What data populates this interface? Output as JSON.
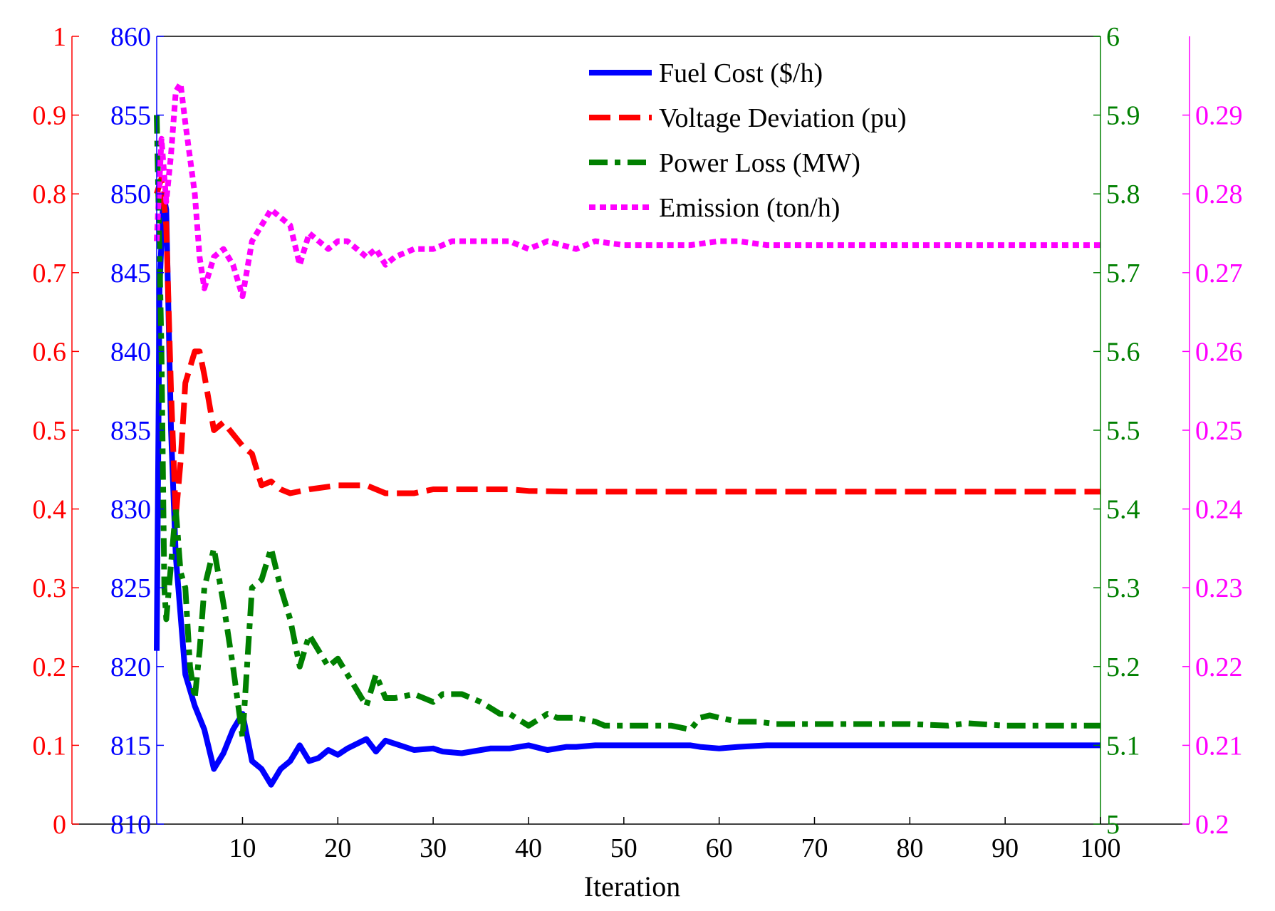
{
  "chart_data": {
    "type": "line",
    "title": "",
    "xlabel": "Iteration",
    "x_ticks": [
      10,
      20,
      30,
      40,
      50,
      60,
      70,
      80,
      90,
      100
    ],
    "xlim": [
      1,
      100
    ],
    "grid": false,
    "legend_position": "top-right",
    "axes": [
      {
        "id": "voltage",
        "side": "left-outer",
        "color": "#ff0000",
        "range": [
          0,
          1
        ],
        "ticks": [
          "0",
          "0.1",
          "0.2",
          "0.3",
          "0.4",
          "0.5",
          "0.6",
          "0.7",
          "0.8",
          "0.9",
          "1"
        ]
      },
      {
        "id": "fuel",
        "side": "left-inner",
        "color": "#0000ff",
        "range": [
          810,
          860
        ],
        "ticks": [
          "810",
          "815",
          "820",
          "825",
          "830",
          "835",
          "840",
          "845",
          "850",
          "855",
          "860"
        ]
      },
      {
        "id": "loss",
        "side": "right-inner",
        "color": "#008000",
        "range": [
          5,
          6
        ],
        "ticks": [
          "5",
          "5.1",
          "5.2",
          "5.3",
          "5.4",
          "5.5",
          "5.6",
          "5.7",
          "5.8",
          "5.9",
          "6"
        ]
      },
      {
        "id": "emission",
        "side": "right-outer",
        "color": "#ff00ff",
        "range": [
          0.2,
          0.3
        ],
        "ticks": [
          "0.2",
          "0.21",
          "0.22",
          "0.23",
          "0.24",
          "0.25",
          "0.26",
          "0.27",
          "0.28",
          "0.29"
        ]
      }
    ],
    "series": [
      {
        "name": "Fuel Cost ($/h)",
        "axis": "fuel",
        "color": "#0000ff",
        "style": "solid",
        "points": [
          [
            1,
            821
          ],
          [
            1.3,
            844
          ],
          [
            1.7,
            850
          ],
          [
            2,
            849
          ],
          [
            2.5,
            835
          ],
          [
            3,
            827
          ],
          [
            4,
            819.5
          ],
          [
            5,
            817.5
          ],
          [
            6,
            816
          ],
          [
            7,
            813.5
          ],
          [
            8,
            814.5
          ],
          [
            9,
            816
          ],
          [
            10,
            817
          ],
          [
            11,
            814
          ],
          [
            12,
            813.5
          ],
          [
            13,
            812.5
          ],
          [
            14,
            813.5
          ],
          [
            15,
            814
          ],
          [
            16,
            815
          ],
          [
            17,
            814
          ],
          [
            18,
            814.2
          ],
          [
            19,
            814.7
          ],
          [
            20,
            814.4
          ],
          [
            21,
            814.8
          ],
          [
            23,
            815.4
          ],
          [
            24,
            814.6
          ],
          [
            25,
            815.3
          ],
          [
            26,
            815.1
          ],
          [
            28,
            814.7
          ],
          [
            30,
            814.8
          ],
          [
            31,
            814.6
          ],
          [
            33,
            814.5
          ],
          [
            35,
            814.7
          ],
          [
            36,
            814.8
          ],
          [
            38,
            814.8
          ],
          [
            39,
            814.9
          ],
          [
            40,
            815
          ],
          [
            42,
            814.7
          ],
          [
            44,
            814.9
          ],
          [
            45,
            814.9
          ],
          [
            47,
            815
          ],
          [
            50,
            815
          ],
          [
            55,
            815
          ],
          [
            57,
            815
          ],
          [
            58,
            814.9
          ],
          [
            60,
            814.8
          ],
          [
            62,
            814.9
          ],
          [
            65,
            815
          ],
          [
            70,
            815
          ],
          [
            80,
            815
          ],
          [
            90,
            815
          ],
          [
            100,
            815
          ]
        ]
      },
      {
        "name": "Voltage Deviation (pu)",
        "axis": "voltage",
        "color": "#ff0000",
        "style": "dashed",
        "points": [
          [
            1,
            0.8
          ],
          [
            1.5,
            0.82
          ],
          [
            2,
            0.76
          ],
          [
            2.5,
            0.55
          ],
          [
            3,
            0.39
          ],
          [
            3.5,
            0.46
          ],
          [
            4,
            0.56
          ],
          [
            5,
            0.6
          ],
          [
            5.5,
            0.6
          ],
          [
            6,
            0.57
          ],
          [
            7,
            0.5
          ],
          [
            8,
            0.51
          ],
          [
            9,
            0.495
          ],
          [
            10,
            0.48
          ],
          [
            11,
            0.47
          ],
          [
            12,
            0.43
          ],
          [
            13,
            0.435
          ],
          [
            14,
            0.425
          ],
          [
            15,
            0.42
          ],
          [
            17,
            0.425
          ],
          [
            20,
            0.43
          ],
          [
            23,
            0.43
          ],
          [
            25,
            0.42
          ],
          [
            28,
            0.42
          ],
          [
            30,
            0.425
          ],
          [
            35,
            0.425
          ],
          [
            38,
            0.425
          ],
          [
            40,
            0.423
          ],
          [
            45,
            0.422
          ],
          [
            50,
            0.422
          ],
          [
            60,
            0.422
          ],
          [
            70,
            0.422
          ],
          [
            80,
            0.422
          ],
          [
            90,
            0.422
          ],
          [
            100,
            0.422
          ]
        ]
      },
      {
        "name": "Power Loss (MW)",
        "axis": "loss",
        "color": "#008000",
        "style": "dashdot",
        "points": [
          [
            1,
            5.9
          ],
          [
            1.5,
            5.6
          ],
          [
            1.8,
            5.3
          ],
          [
            2,
            5.26
          ],
          [
            2.5,
            5.33
          ],
          [
            3,
            5.4
          ],
          [
            3.5,
            5.32
          ],
          [
            4,
            5.3
          ],
          [
            4.5,
            5.2
          ],
          [
            5,
            5.16
          ],
          [
            5.5,
            5.22
          ],
          [
            6,
            5.3
          ],
          [
            7,
            5.35
          ],
          [
            8,
            5.28
          ],
          [
            9,
            5.2
          ],
          [
            10,
            5.11
          ],
          [
            11,
            5.3
          ],
          [
            12,
            5.31
          ],
          [
            13,
            5.35
          ],
          [
            14,
            5.3
          ],
          [
            15,
            5.26
          ],
          [
            16,
            5.2
          ],
          [
            17,
            5.24
          ],
          [
            18,
            5.22
          ],
          [
            19,
            5.2
          ],
          [
            20,
            5.21
          ],
          [
            21,
            5.19
          ],
          [
            22,
            5.17
          ],
          [
            23,
            5.15
          ],
          [
            24,
            5.19
          ],
          [
            25,
            5.16
          ],
          [
            26,
            5.16
          ],
          [
            28,
            5.165
          ],
          [
            30,
            5.155
          ],
          [
            31,
            5.165
          ],
          [
            33,
            5.165
          ],
          [
            35,
            5.155
          ],
          [
            37,
            5.14
          ],
          [
            38,
            5.14
          ],
          [
            40,
            5.125
          ],
          [
            42,
            5.14
          ],
          [
            43,
            5.135
          ],
          [
            45,
            5.135
          ],
          [
            47,
            5.13
          ],
          [
            48,
            5.125
          ],
          [
            50,
            5.125
          ],
          [
            55,
            5.125
          ],
          [
            57,
            5.12
          ],
          [
            58,
            5.135
          ],
          [
            59,
            5.138
          ],
          [
            60,
            5.135
          ],
          [
            62,
            5.13
          ],
          [
            64,
            5.13
          ],
          [
            66,
            5.127
          ],
          [
            70,
            5.127
          ],
          [
            80,
            5.127
          ],
          [
            84,
            5.125
          ],
          [
            86,
            5.128
          ],
          [
            90,
            5.125
          ],
          [
            100,
            5.125
          ]
        ]
      },
      {
        "name": "Emission (ton/h)",
        "axis": "emission",
        "color": "#ff00ff",
        "style": "dotted",
        "points": [
          [
            1,
            0.274
          ],
          [
            1.5,
            0.287
          ],
          [
            2,
            0.279
          ],
          [
            2.5,
            0.285
          ],
          [
            3,
            0.293
          ],
          [
            3.5,
            0.294
          ],
          [
            4,
            0.289
          ],
          [
            5,
            0.28
          ],
          [
            5.5,
            0.272
          ],
          [
            6,
            0.268
          ],
          [
            7,
            0.272
          ],
          [
            8,
            0.273
          ],
          [
            9,
            0.271
          ],
          [
            10,
            0.267
          ],
          [
            11,
            0.274
          ],
          [
            12,
            0.276
          ],
          [
            13,
            0.278
          ],
          [
            14,
            0.277
          ],
          [
            15,
            0.276
          ],
          [
            16,
            0.271
          ],
          [
            17,
            0.275
          ],
          [
            18,
            0.274
          ],
          [
            19,
            0.273
          ],
          [
            20,
            0.274
          ],
          [
            21,
            0.274
          ],
          [
            22,
            0.273
          ],
          [
            23,
            0.272
          ],
          [
            24,
            0.273
          ],
          [
            25,
            0.271
          ],
          [
            26,
            0.272
          ],
          [
            28,
            0.273
          ],
          [
            30,
            0.273
          ],
          [
            32,
            0.274
          ],
          [
            35,
            0.274
          ],
          [
            38,
            0.274
          ],
          [
            40,
            0.273
          ],
          [
            42,
            0.274
          ],
          [
            45,
            0.273
          ],
          [
            47,
            0.274
          ],
          [
            50,
            0.2735
          ],
          [
            55,
            0.2735
          ],
          [
            57,
            0.2735
          ],
          [
            60,
            0.274
          ],
          [
            62,
            0.274
          ],
          [
            65,
            0.2735
          ],
          [
            70,
            0.2735
          ],
          [
            80,
            0.2735
          ],
          [
            90,
            0.2735
          ],
          [
            100,
            0.2735
          ]
        ]
      }
    ]
  }
}
